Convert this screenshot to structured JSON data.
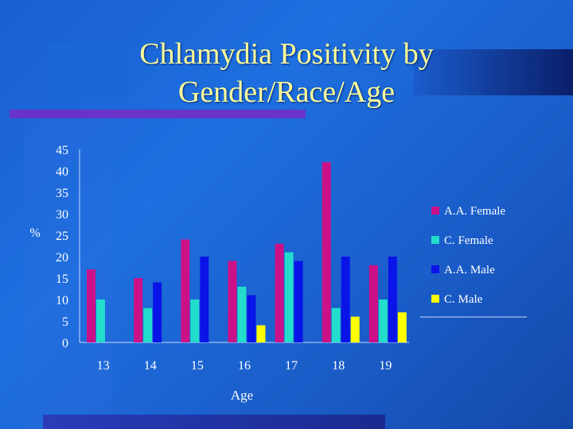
{
  "slide": {
    "title_line1": "Chlamydia Positivity by",
    "title_line2": "Gender/Race/Age"
  },
  "colors": {
    "A.A. Female": "#cc1188",
    "C. Female": "#22ddcc",
    "A.A. Male": "#0a14e8",
    "C. Male": "#ffff00"
  },
  "chart_data": {
    "type": "bar",
    "title": "Chlamydia Positivity by Gender/Race/Age",
    "xlabel": "Age",
    "ylabel": "%",
    "ylim": [
      0,
      45
    ],
    "yticks": [
      "0",
      "5",
      "10",
      "15",
      "20",
      "25",
      "30",
      "35",
      "40",
      "45"
    ],
    "categories": [
      "13",
      "14",
      "15",
      "16",
      "17",
      "18",
      "19"
    ],
    "legend_position": "right",
    "series": [
      {
        "name": "A.A. Female",
        "values": [
          17,
          15,
          24,
          19,
          23,
          42,
          18
        ]
      },
      {
        "name": "C. Female",
        "values": [
          10,
          8,
          10,
          13,
          21,
          8,
          10
        ]
      },
      {
        "name": "A.A. Male",
        "values": [
          null,
          14,
          20,
          11,
          19,
          20,
          20
        ]
      },
      {
        "name": "C. Male",
        "values": [
          null,
          null,
          null,
          4,
          null,
          6,
          7
        ]
      }
    ]
  }
}
